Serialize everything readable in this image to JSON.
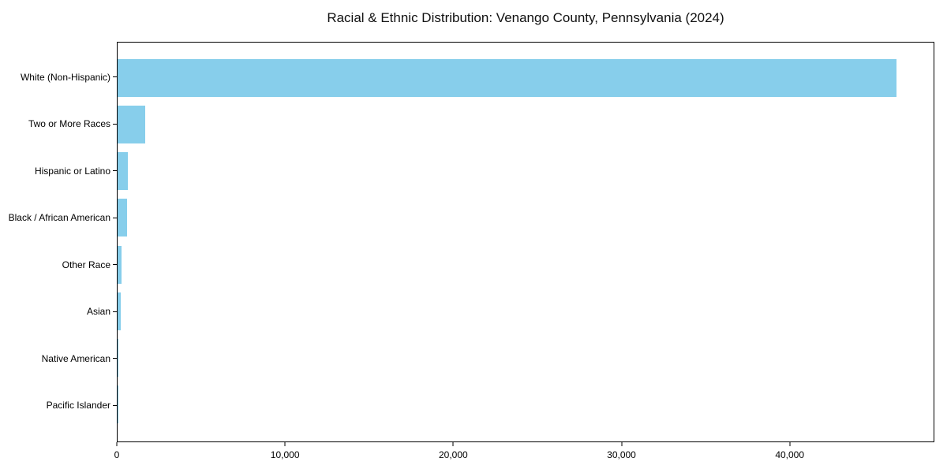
{
  "title": "Racial & Ethnic Distribution: Venango County, Pennsylvania (2024)",
  "colors": {
    "bar": "#87CEEB",
    "axis": "#000000",
    "background": "#ffffff",
    "text": "#111111"
  },
  "chart_data": {
    "type": "bar",
    "orientation": "horizontal",
    "title": "Racial & Ethnic Distribution: Venango County, Pennsylvania (2024)",
    "xlabel": "",
    "ylabel": "",
    "categories": [
      "White (Non-Hispanic)",
      "Two or More Races",
      "Hispanic or Latino",
      "Black / African American",
      "Other Race",
      "Asian",
      "Native American",
      "Pacific Islander"
    ],
    "values": [
      46400,
      1650,
      600,
      550,
      250,
      175,
      40,
      10
    ],
    "xlim": [
      0,
      48600
    ],
    "x_ticks": [
      0,
      10000,
      20000,
      30000,
      40000
    ],
    "x_tick_labels": [
      "0",
      "10,000",
      "20,000",
      "30,000",
      "40,000"
    ],
    "bar_color": "#87CEEB",
    "grid": false,
    "legend": null
  }
}
